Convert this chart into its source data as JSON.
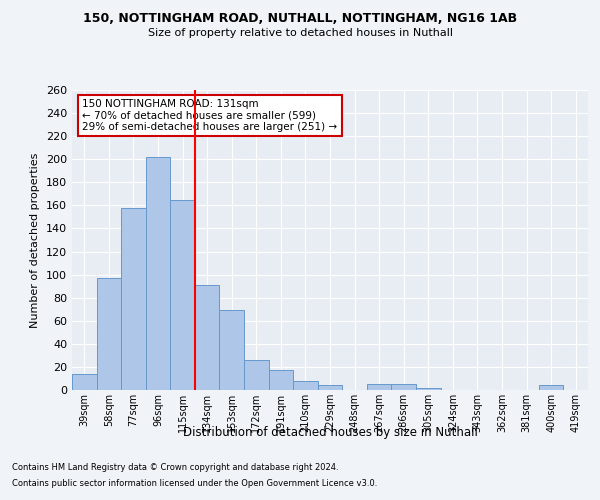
{
  "title1": "150, NOTTINGHAM ROAD, NUTHALL, NOTTINGHAM, NG16 1AB",
  "title2": "Size of property relative to detached houses in Nuthall",
  "xlabel": "Distribution of detached houses by size in Nuthall",
  "ylabel": "Number of detached properties",
  "categories": [
    "39sqm",
    "58sqm",
    "77sqm",
    "96sqm",
    "115sqm",
    "134sqm",
    "153sqm",
    "172sqm",
    "191sqm",
    "210sqm",
    "229sqm",
    "248sqm",
    "267sqm",
    "286sqm",
    "305sqm",
    "324sqm",
    "343sqm",
    "362sqm",
    "381sqm",
    "400sqm",
    "419sqm"
  ],
  "values": [
    14,
    97,
    158,
    202,
    165,
    91,
    69,
    26,
    17,
    8,
    4,
    0,
    5,
    5,
    2,
    0,
    0,
    0,
    0,
    4,
    0
  ],
  "bar_color": "#aec6e8",
  "bar_edge_color": "#6699cc",
  "red_line_x": 4.5,
  "annotation_line1": "150 NOTTINGHAM ROAD: 131sqm",
  "annotation_line2": "← 70% of detached houses are smaller (599)",
  "annotation_line3": "29% of semi-detached houses are larger (251) →",
  "annotation_box_color": "#ffffff",
  "annotation_box_edge": "#cc0000",
  "ylim": [
    0,
    260
  ],
  "yticks": [
    0,
    20,
    40,
    60,
    80,
    100,
    120,
    140,
    160,
    180,
    200,
    220,
    240,
    260
  ],
  "background_color": "#e8edf4",
  "fig_background_color": "#f0f4f8",
  "grid_color": "#ffffff",
  "footer1": "Contains HM Land Registry data © Crown copyright and database right 2024.",
  "footer2": "Contains public sector information licensed under the Open Government Licence v3.0."
}
